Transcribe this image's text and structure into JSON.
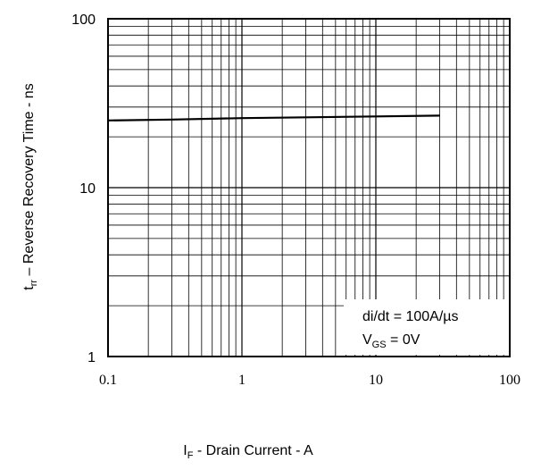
{
  "chart_data": {
    "type": "line",
    "xscale": "log",
    "yscale": "log",
    "xlim": [
      0.1,
      100
    ],
    "ylim": [
      1,
      100
    ],
    "grid": true,
    "xlabel": {
      "main": "I",
      "sub": "F",
      "rest": " - Drain Current  - A"
    },
    "ylabel": {
      "main": "t",
      "sub": "rr",
      "rest": " – Reverse Recovery Time - ns"
    },
    "x_ticks": [
      {
        "value": 0.1,
        "label": "0.1"
      },
      {
        "value": 1,
        "label": "1"
      },
      {
        "value": 10,
        "label": "10"
      },
      {
        "value": 100,
        "label": "100"
      }
    ],
    "y_ticks": [
      {
        "value": 1,
        "label": "1"
      },
      {
        "value": 10,
        "label": "10"
      },
      {
        "value": 100,
        "label": "100"
      }
    ],
    "series": [
      {
        "color": "#000000",
        "x": [
          0.1,
          0.3,
          1,
          3,
          10,
          30
        ],
        "y": [
          25,
          25.3,
          25.8,
          26.1,
          26.4,
          26.7
        ]
      }
    ],
    "annotation": {
      "line1": "di/dt = 100A/µs",
      "line2": {
        "main": "V",
        "sub": "GS",
        "rest": " = 0V"
      }
    }
  }
}
